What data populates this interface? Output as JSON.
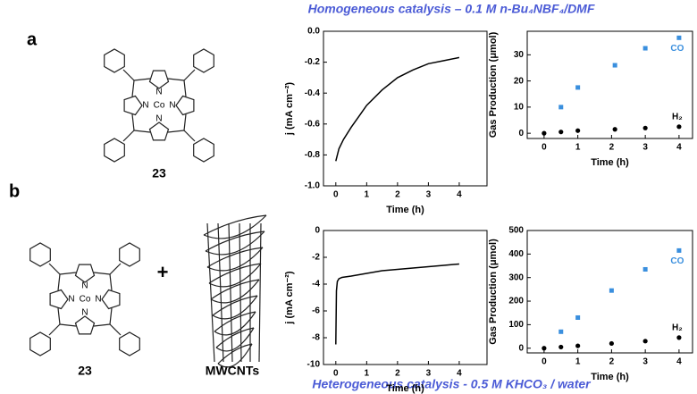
{
  "figure": {
    "top_caption": "Homogeneous catalysis – 0.1 M n-Bu₄NBF₄/DMF",
    "bottom_caption": "Heterogeneous catalysis - 0.5 M KHCO₃ / water",
    "panel_labels": [
      "a",
      "b"
    ],
    "compound_labels": [
      "23",
      "23",
      "MWCNTs"
    ],
    "plus": "+",
    "atoms": {
      "metal": "Co",
      "nitrogen": "N"
    }
  },
  "chart_data": [
    {
      "type": "line",
      "x_label": "Time (h)",
      "y_label": "j (mA cm⁻²)",
      "x": [
        0,
        0.1,
        0.25,
        0.5,
        0.75,
        1,
        1.5,
        2,
        2.5,
        3,
        3.5,
        4
      ],
      "values": [
        -0.84,
        -0.76,
        -0.7,
        -0.62,
        -0.55,
        -0.48,
        -0.38,
        -0.3,
        -0.25,
        -0.21,
        -0.19,
        -0.17
      ],
      "color": "#000000",
      "xlim": [
        -0.4,
        4.9
      ],
      "xticks": [
        0,
        1,
        2,
        3,
        4
      ],
      "ylim": [
        -1,
        0
      ],
      "yticks": [
        {
          "value": -1,
          "label": "-1.0"
        },
        -0.8,
        -0.6,
        -0.4,
        -0.2,
        {
          "value": 0,
          "label": "0.0"
        }
      ]
    },
    {
      "type": "scatter",
      "x_label": "Time (h)",
      "y_label": "Gas Production (μmol)",
      "series": [
        {
          "name": "CO",
          "color": "#3a8fde",
          "marker": "square",
          "x": [
            0.5,
            1,
            2.1,
            3,
            4
          ],
          "values": [
            10,
            17.5,
            26,
            32.5,
            36.5
          ]
        },
        {
          "name": "H₂",
          "color": "#000000",
          "marker": "circle",
          "x": [
            0,
            0.5,
            1,
            2.1,
            3,
            4
          ],
          "values": [
            0,
            0.5,
            1,
            1.5,
            2,
            2.5
          ]
        }
      ],
      "xlim": [
        -0.5,
        4.4
      ],
      "xticks": [
        0,
        1,
        2,
        3,
        4
      ],
      "ylim": [
        -2,
        39
      ],
      "yticks": [
        0,
        10,
        20,
        30
      ]
    },
    {
      "type": "line",
      "x_label": "Time (h)",
      "y_label": "j (mA cm⁻²)",
      "x": [
        0,
        0.02,
        0.05,
        0.1,
        0.2,
        0.5,
        1,
        1.5,
        2,
        2.5,
        3,
        3.5,
        4
      ],
      "values": [
        -8.5,
        -4.5,
        -3.8,
        -3.6,
        -3.5,
        -3.4,
        -3.2,
        -3.0,
        -2.9,
        -2.8,
        -2.7,
        -2.6,
        -2.5
      ],
      "color": "#000000",
      "xlim": [
        -0.4,
        4.9
      ],
      "xticks": [
        0,
        1,
        2,
        3,
        4
      ],
      "ylim": [
        -10,
        0
      ],
      "yticks": [
        -10,
        -8,
        -6,
        -4,
        -2,
        0
      ]
    },
    {
      "type": "scatter",
      "x_label": "Time (h)",
      "y_label": "Gas Production (μmol)",
      "series": [
        {
          "name": "CO",
          "color": "#3a8fde",
          "marker": "square",
          "x": [
            0.5,
            1,
            2,
            3,
            4
          ],
          "values": [
            70,
            130,
            245,
            335,
            415
          ]
        },
        {
          "name": "H₂",
          "color": "#000000",
          "marker": "circle",
          "x": [
            0,
            0.5,
            1,
            2,
            3,
            4
          ],
          "values": [
            0,
            5,
            10,
            20,
            30,
            45
          ]
        }
      ],
      "xlim": [
        -0.5,
        4.4
      ],
      "xticks": [
        0,
        1,
        2,
        3,
        4
      ],
      "ylim": [
        -20,
        500
      ],
      "yticks": [
        0,
        100,
        200,
        300,
        400,
        500
      ]
    }
  ]
}
